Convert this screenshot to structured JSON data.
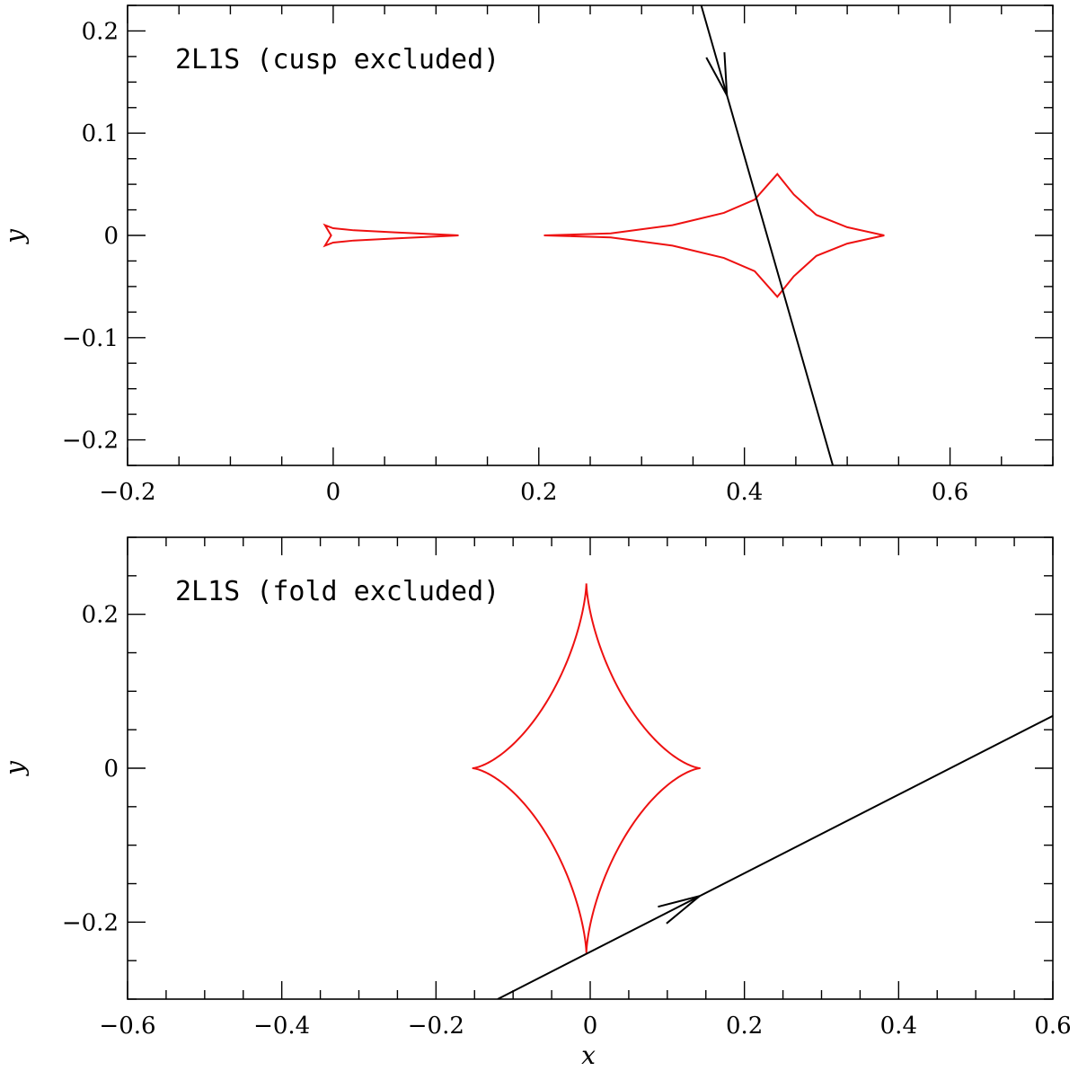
{
  "chart_data": [
    {
      "type": "line",
      "title": "2L1S (cusp excluded)",
      "xlabel": "",
      "ylabel": "y",
      "xlim": [
        -0.2,
        0.7
      ],
      "ylim": [
        -0.225,
        0.225
      ],
      "x_ticks": [
        -0.2,
        0,
        0.2,
        0.4,
        0.6
      ],
      "x_tick_labels": [
        "−0.2",
        "0",
        "0.2",
        "0.4",
        "0.6"
      ],
      "y_ticks": [
        -0.2,
        -0.1,
        0,
        0.1,
        0.2
      ],
      "y_tick_labels": [
        "−0.2",
        "−0.1",
        "0",
        "0.1",
        "0.2"
      ],
      "grid": false,
      "caustics": [
        {
          "kind": "small-cusp",
          "color": "#ee1111",
          "points": [
            [
              0.122,
              0
            ],
            [
              0.06,
              0.003
            ],
            [
              0.02,
              0.005
            ],
            [
              0.0,
              0.007
            ],
            [
              -0.008,
              0.01
            ],
            [
              -0.002,
              0.0
            ],
            [
              -0.008,
              -0.01
            ],
            [
              0.0,
              -0.007
            ],
            [
              0.02,
              -0.005
            ],
            [
              0.06,
              -0.003
            ],
            [
              0.122,
              0
            ]
          ]
        },
        {
          "kind": "central-astroid",
          "color": "#ee1111",
          "points": [
            [
              0.205,
              0
            ],
            [
              0.27,
              0.002
            ],
            [
              0.33,
              0.01
            ],
            [
              0.38,
              0.022
            ],
            [
              0.41,
              0.035
            ],
            [
              0.432,
              0.06
            ],
            [
              0.448,
              0.04
            ],
            [
              0.47,
              0.02
            ],
            [
              0.5,
              0.008
            ],
            [
              0.536,
              0
            ],
            [
              0.5,
              -0.008
            ],
            [
              0.47,
              -0.02
            ],
            [
              0.448,
              -0.04
            ],
            [
              0.432,
              -0.06
            ],
            [
              0.41,
              -0.035
            ],
            [
              0.38,
              -0.022
            ],
            [
              0.33,
              -0.01
            ],
            [
              0.27,
              -0.002
            ],
            [
              0.205,
              0
            ]
          ]
        }
      ],
      "trajectory": {
        "color": "#000000",
        "points": [
          [
            0.358,
            0.225
          ],
          [
            0.486,
            -0.225
          ]
        ],
        "arrow_at": [
          0.383,
          0.137
        ]
      }
    },
    {
      "type": "line",
      "title": "2L1S (fold excluded)",
      "xlabel": "x",
      "ylabel": "y",
      "xlim": [
        -0.6,
        0.6
      ],
      "ylim": [
        -0.3,
        0.3
      ],
      "x_ticks": [
        -0.6,
        -0.4,
        -0.2,
        0,
        0.2,
        0.4,
        0.6
      ],
      "x_tick_labels": [
        "−0.6",
        "−0.4",
        "−0.2",
        "0",
        "0.2",
        "0.4",
        "0.6"
      ],
      "y_ticks": [
        -0.2,
        0,
        0.2
      ],
      "y_tick_labels": [
        "−0.2",
        "0",
        "0.2"
      ],
      "grid": false,
      "caustics": [
        {
          "kind": "astroid",
          "color": "#ee1111",
          "center": [
            -0.005,
            0
          ],
          "half_width": 0.148,
          "half_height": 0.24
        }
      ],
      "trajectory": {
        "color": "#000000",
        "points": [
          [
            -0.12,
            -0.3
          ],
          [
            0.6,
            0.068
          ]
        ],
        "arrow_at": [
          0.142,
          -0.166
        ]
      }
    }
  ]
}
